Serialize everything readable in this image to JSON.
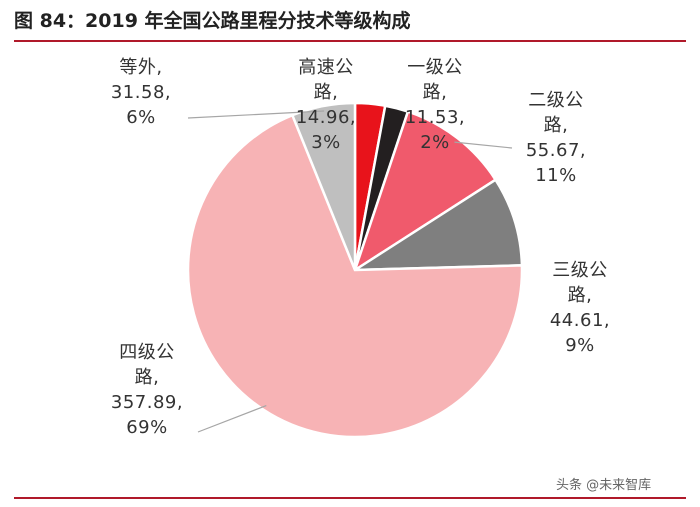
{
  "figure": {
    "title": "图 84：2019 年全国公路里程分技术等级构成",
    "watermark": "头条 @未来智库"
  },
  "chart_data": {
    "type": "pie",
    "title": "图 84：2019 年全国公路里程分技术等级构成",
    "unit": "",
    "slices": [
      {
        "key": "highway",
        "name_lines": [
          "高速公",
          "路,"
        ],
        "value_text": "14.96,",
        "pct_text": "3%",
        "value": 14.96,
        "percent": 3,
        "color": "#e8131b"
      },
      {
        "key": "class1",
        "name_lines": [
          "一级公",
          "路,"
        ],
        "value_text": "11.53,",
        "pct_text": "2%",
        "value": 11.53,
        "percent": 2,
        "color": "#231f20"
      },
      {
        "key": "class2",
        "name_lines": [
          "二级公",
          "路,"
        ],
        "value_text": "55.67,",
        "pct_text": "11%",
        "value": 55.67,
        "percent": 11,
        "color": "#f05a6c"
      },
      {
        "key": "class3",
        "name_lines": [
          "三级公",
          "路,"
        ],
        "value_text": "44.61,",
        "pct_text": "9%",
        "value": 44.61,
        "percent": 9,
        "color": "#7f7f7f"
      },
      {
        "key": "class4",
        "name_lines": [
          "四级公",
          "路,"
        ],
        "value_text": "357.89,",
        "pct_text": "69%",
        "value": 357.89,
        "percent": 69,
        "color": "#f7b3b5"
      },
      {
        "key": "other",
        "name_lines": [
          "等外,"
        ],
        "value_text": "31.58,",
        "pct_text": "6%",
        "value": 31.58,
        "percent": 6,
        "color": "#bfbfbf"
      }
    ]
  }
}
